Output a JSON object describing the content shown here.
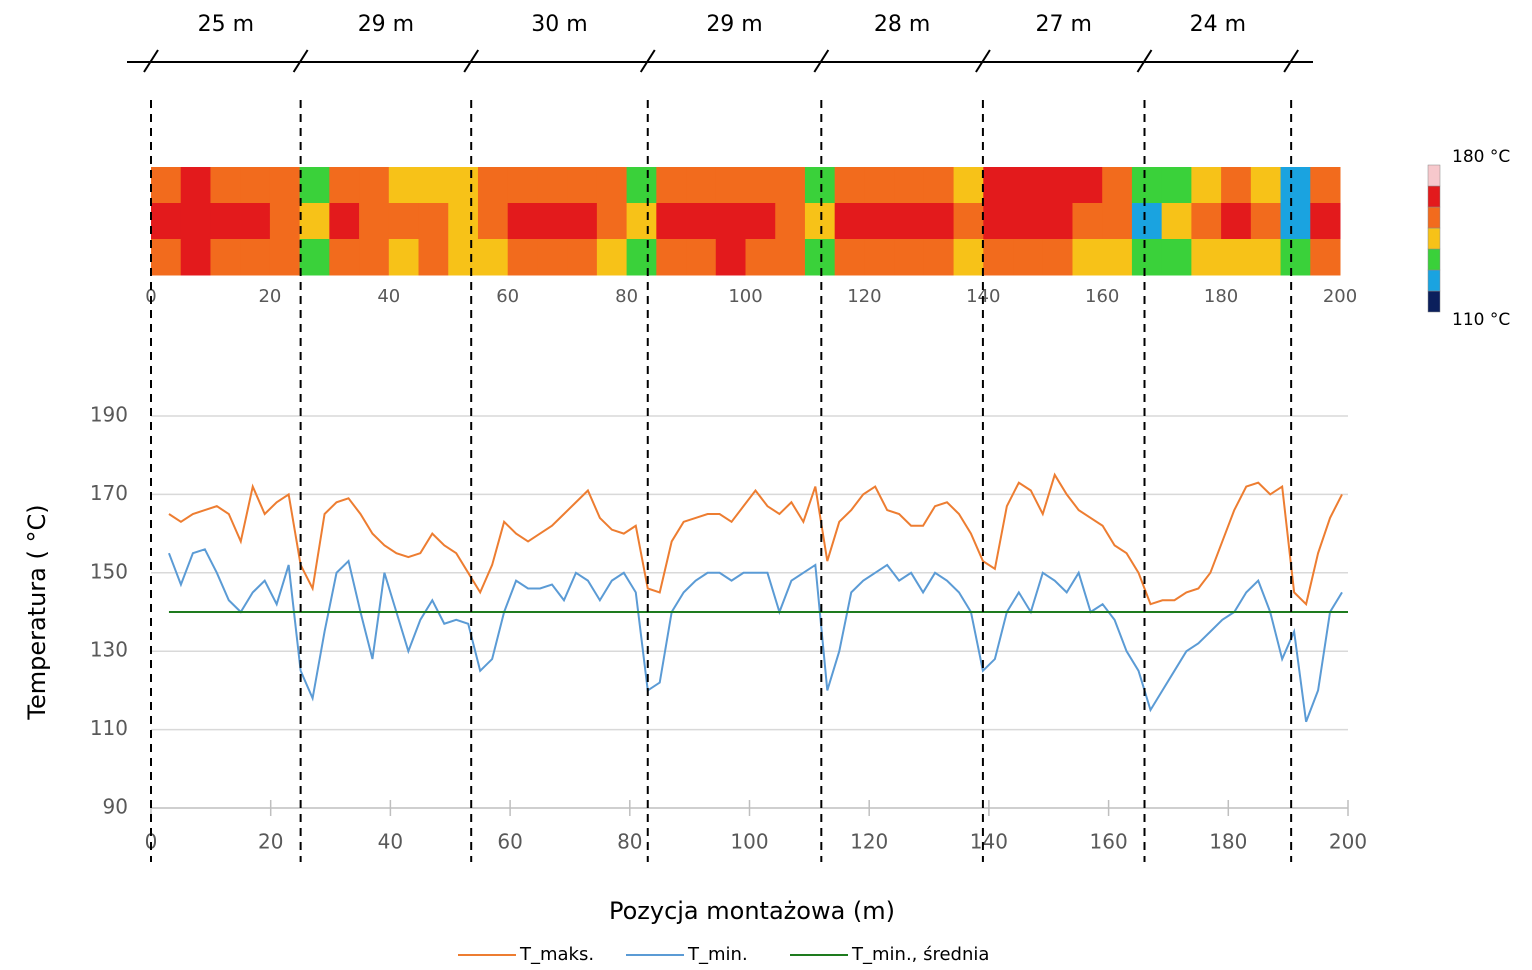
{
  "dimensions": {
    "joints": [
      0,
      25,
      53.5,
      83,
      112,
      139,
      166,
      190.5
    ],
    "labels": [
      "25 m",
      "29 m",
      "30 m",
      "29 m",
      "28 m",
      "27 m",
      "24 m"
    ]
  },
  "chart_data": [
    {
      "type": "heatmap",
      "xlim": [
        0,
        200
      ],
      "xticks": [
        0,
        20,
        40,
        60,
        80,
        100,
        120,
        140,
        160,
        180,
        200
      ],
      "bins": [
        0,
        5,
        10,
        15,
        20,
        25,
        30,
        35,
        40,
        45,
        50,
        55,
        60,
        65,
        70,
        75,
        80,
        85,
        90,
        95,
        100,
        105,
        110,
        115,
        120,
        125,
        130,
        135,
        140,
        145,
        150,
        155,
        160,
        165,
        170,
        175,
        180,
        185,
        190,
        195,
        200
      ],
      "rows": [
        [
          155,
          160,
          157,
          155,
          150,
          138,
          155,
          152,
          147,
          148,
          142,
          152,
          155,
          157,
          155,
          150,
          137,
          155,
          157,
          158,
          155,
          150,
          138,
          155,
          157,
          155,
          152,
          145,
          160,
          165,
          162,
          160,
          150,
          137,
          138,
          148,
          150,
          142,
          128,
          155
        ],
        [
          162,
          165,
          163,
          160,
          155,
          140,
          162,
          158,
          156,
          155,
          145,
          156,
          160,
          162,
          163,
          157,
          140,
          160,
          163,
          165,
          163,
          157,
          140,
          160,
          162,
          163,
          160,
          150,
          163,
          162,
          160,
          158,
          152,
          128,
          145,
          155,
          163,
          150,
          125,
          163
        ],
        [
          158,
          162,
          157,
          155,
          150,
          137,
          157,
          152,
          147,
          152,
          140,
          148,
          152,
          155,
          157,
          148,
          135,
          155,
          157,
          160,
          157,
          150,
          136,
          152,
          155,
          157,
          152,
          140,
          150,
          157,
          150,
          148,
          140,
          135,
          138,
          145,
          148,
          140,
          132,
          152
        ]
      ],
      "clim": [
        110,
        180
      ],
      "colors": [
        "#0b1f5c",
        "#1aa3e0",
        "#3ad13a",
        "#f7c218",
        "#f26b1d",
        "#e31a1c",
        "#f7c8cc"
      ],
      "cticks": [
        {
          "value": 110,
          "label": "110 °C"
        },
        {
          "value": 180,
          "label": "180 °C"
        }
      ]
    },
    {
      "type": "line",
      "xlabel": "Pozycja montażowa (m)",
      "ylabel": "Temperatura ( °C)",
      "xlim": [
        0,
        200
      ],
      "xticks": [
        0,
        20,
        40,
        60,
        80,
        100,
        120,
        140,
        160,
        180,
        200
      ],
      "ylim": [
        90,
        190
      ],
      "yticks": [
        90,
        110,
        130,
        150,
        170,
        190
      ],
      "grid": true,
      "x": [
        3,
        5,
        7,
        9,
        11,
        13,
        15,
        17,
        19,
        21,
        23,
        25,
        27,
        29,
        31,
        33,
        35,
        37,
        39,
        41,
        43,
        45,
        47,
        49,
        51,
        53,
        55,
        57,
        59,
        61,
        63,
        65,
        67,
        69,
        71,
        73,
        75,
        77,
        79,
        81,
        83,
        85,
        87,
        89,
        91,
        93,
        95,
        97,
        99,
        101,
        103,
        105,
        107,
        109,
        111,
        113,
        115,
        117,
        119,
        121,
        123,
        125,
        127,
        129,
        131,
        133,
        135,
        137,
        139,
        141,
        143,
        145,
        147,
        149,
        151,
        153,
        155,
        157,
        159,
        161,
        163,
        165,
        167,
        169,
        171,
        173,
        175,
        177,
        179,
        181,
        183,
        185,
        187,
        189,
        191,
        193,
        195,
        197,
        199
      ],
      "series": [
        {
          "name": "T_maks.",
          "color": "#ed7d31",
          "values": [
            165,
            163,
            165,
            166,
            167,
            165,
            158,
            172,
            165,
            168,
            170,
            152,
            146,
            165,
            168,
            169,
            165,
            160,
            157,
            155,
            154,
            155,
            160,
            157,
            155,
            150,
            145,
            152,
            163,
            160,
            158,
            160,
            162,
            165,
            168,
            171,
            164,
            161,
            160,
            162,
            146,
            145,
            158,
            163,
            164,
            165,
            165,
            163,
            167,
            171,
            167,
            165,
            168,
            163,
            172,
            153,
            163,
            166,
            170,
            172,
            166,
            165,
            162,
            162,
            167,
            168,
            165,
            160,
            153,
            151,
            167,
            173,
            171,
            165,
            175,
            170,
            166,
            164,
            162,
            157,
            155,
            150,
            142,
            143,
            143,
            145,
            146,
            150,
            158,
            166,
            172,
            173,
            170,
            172,
            145,
            142,
            155,
            164,
            170
          ]
        },
        {
          "name": "T_min.",
          "color": "#5b9bd5",
          "values": [
            155,
            147,
            155,
            156,
            150,
            143,
            140,
            145,
            148,
            142,
            152,
            125,
            118,
            135,
            150,
            153,
            140,
            128,
            150,
            140,
            130,
            138,
            143,
            137,
            138,
            137,
            125,
            128,
            140,
            148,
            146,
            146,
            147,
            143,
            150,
            148,
            143,
            148,
            150,
            145,
            120,
            122,
            140,
            145,
            148,
            150,
            150,
            148,
            150,
            150,
            150,
            140,
            148,
            150,
            152,
            120,
            130,
            145,
            148,
            150,
            152,
            148,
            150,
            145,
            150,
            148,
            145,
            140,
            125,
            128,
            140,
            145,
            140,
            150,
            148,
            145,
            150,
            140,
            142,
            138,
            130,
            125,
            115,
            120,
            125,
            130,
            132,
            135,
            138,
            140,
            145,
            148,
            140,
            128,
            135,
            112,
            120,
            140,
            145
          ]
        },
        {
          "name": "T_min., średnia",
          "color": "#1e7b1e",
          "x": [
            3,
            200
          ],
          "values": [
            140,
            140
          ]
        }
      ]
    }
  ]
}
